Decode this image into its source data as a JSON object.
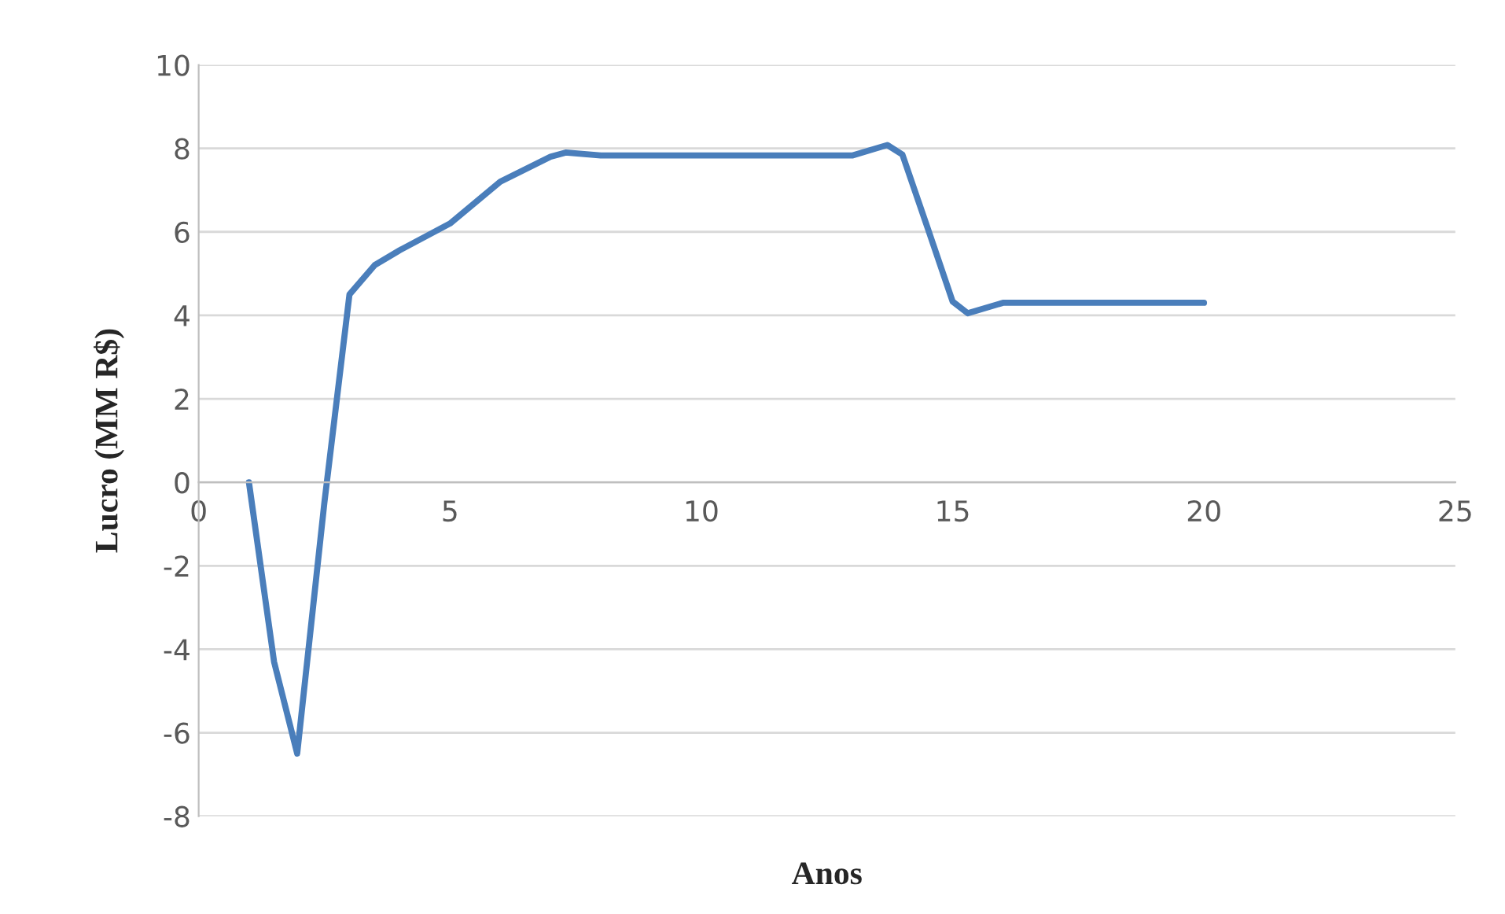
{
  "chart_data": {
    "type": "line",
    "xlabel": "Anos",
    "ylabel": "Lucro (MM R$)",
    "x": [
      1,
      1.5,
      1.96,
      2.5,
      3,
      3.5,
      4,
      5,
      6,
      7,
      7.3,
      8,
      9,
      10,
      11,
      12,
      13,
      13.7,
      14,
      14.5,
      15,
      15.3,
      16,
      17,
      18,
      19,
      20
    ],
    "series": [
      {
        "color": "#4a7ebb",
        "values": [
          0,
          -4.3,
          -6.5,
          -0.5,
          4.5,
          5.2,
          5.56,
          6.2,
          7.2,
          7.8,
          7.9,
          7.83,
          7.83,
          7.83,
          7.83,
          7.83,
          7.83,
          8.08,
          7.85,
          6.1,
          4.33,
          4.05,
          4.3,
          4.3,
          4.3,
          4.3,
          4.3
        ]
      }
    ],
    "xlim": [
      0,
      25
    ],
    "xticks": [
      0,
      5,
      10,
      15,
      20,
      25
    ],
    "ylim": [
      -8,
      10
    ],
    "yticks": [
      -8,
      -6,
      -4,
      -2,
      0,
      2,
      4,
      6,
      8,
      10
    ],
    "grid": "y",
    "marker": "none",
    "line_style": "solid"
  }
}
